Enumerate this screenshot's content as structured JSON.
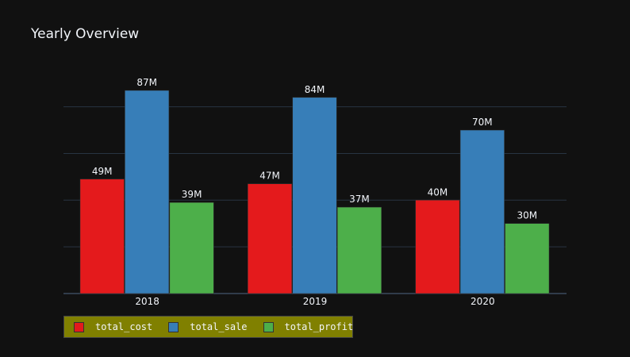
{
  "title": "Yearly Overview",
  "chart_data": {
    "type": "bar",
    "title": "Yearly Overview",
    "categories": [
      "2018",
      "2019",
      "2020"
    ],
    "series": [
      {
        "name": "total_cost",
        "color": "#e41a1c",
        "values": [
          49,
          47,
          40
        ],
        "labels": [
          "49M",
          "47M",
          "40M"
        ]
      },
      {
        "name": "total_sale",
        "color": "#377eb8",
        "values": [
          87,
          84,
          70
        ],
        "labels": [
          "87M",
          "84M",
          "70M"
        ]
      },
      {
        "name": "total_profit",
        "color": "#4daf4a",
        "values": [
          39,
          37,
          30
        ],
        "labels": [
          "39M",
          "37M",
          "30M"
        ]
      }
    ],
    "ylim": [
      0,
      87
    ],
    "grid": true,
    "legend_position": "bottom-left",
    "legend_background": "#808000",
    "background": "#111111"
  }
}
